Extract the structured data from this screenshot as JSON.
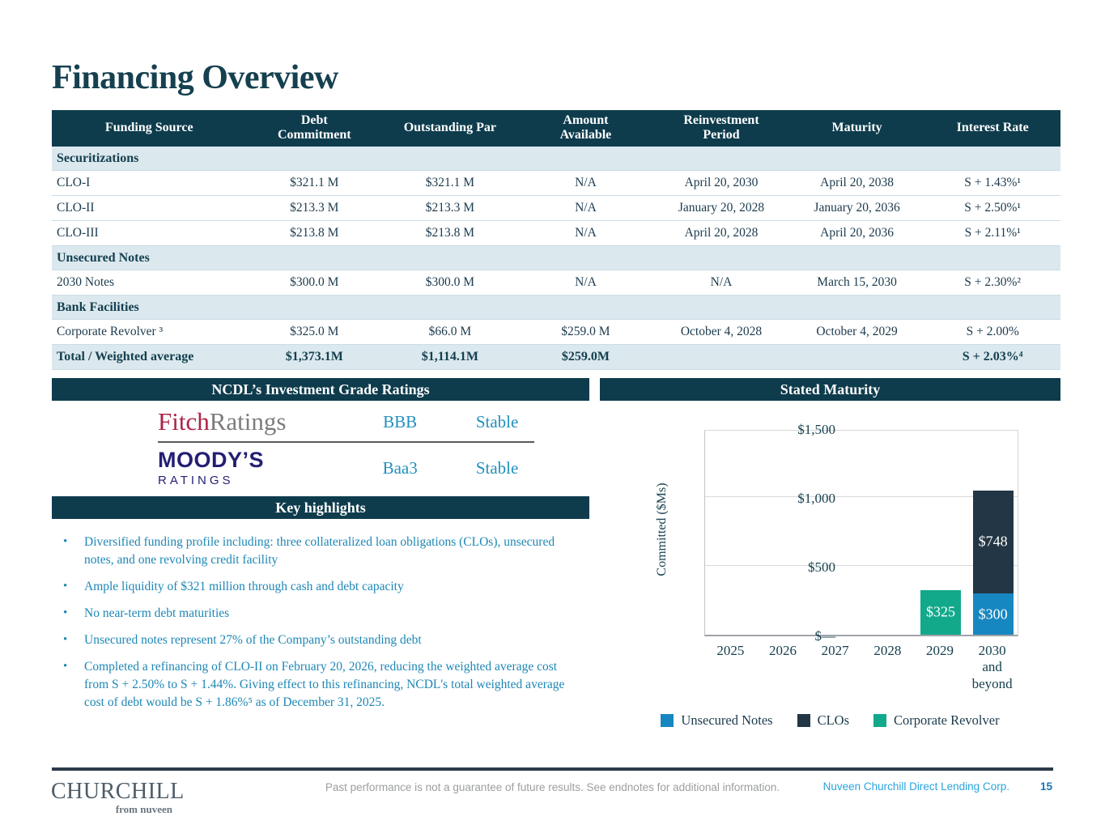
{
  "slide": {
    "title": "Financing Overview",
    "footer": {
      "logo_primary": "CHURCHILL",
      "logo_secondary": "from nuveen",
      "disclaimer": "Past performance is not a guarantee of future results. See endnotes for additional information.",
      "company": "Nuveen Churchill Direct Lending Corp.",
      "page_number": "15"
    }
  },
  "financing_table": {
    "headers": [
      "Funding Source",
      "Debt\nCommitment",
      "Outstanding Par",
      "Amount\nAvailable",
      "Reinvestment\nPeriod",
      "Maturity",
      "Interest Rate"
    ],
    "rows": [
      {
        "type": "section",
        "label": "Securitizations"
      },
      {
        "type": "data",
        "cells": [
          "CLO-I",
          "$321.1 M",
          "$321.1 M",
          "N/A",
          "April 20, 2030",
          "April 20, 2038",
          "S + 1.43%¹"
        ]
      },
      {
        "type": "data",
        "cells": [
          "CLO-II",
          "$213.3 M",
          "$213.3 M",
          "N/A",
          "January 20, 2028",
          "January 20, 2036",
          "S + 2.50%¹"
        ]
      },
      {
        "type": "data",
        "cells": [
          "CLO-III",
          "$213.8 M",
          "$213.8 M",
          "N/A",
          "April 20, 2028",
          "April 20, 2036",
          "S + 2.11%¹"
        ]
      },
      {
        "type": "section",
        "label": "Unsecured Notes"
      },
      {
        "type": "data",
        "cells": [
          "2030 Notes",
          "$300.0 M",
          "$300.0 M",
          "N/A",
          "N/A",
          "March 15, 2030",
          "S + 2.30%²"
        ]
      },
      {
        "type": "section",
        "label": "Bank Facilities"
      },
      {
        "type": "data",
        "cells": [
          "Corporate Revolver ³",
          "$325.0 M",
          "$66.0 M",
          "$259.0 M",
          "October 4, 2028",
          "October 4, 2029",
          "S + 2.00%"
        ]
      },
      {
        "type": "total",
        "cells": [
          "Total / Weighted average",
          "$1,373.1M",
          "$1,114.1M",
          "$259.0M",
          "",
          "",
          "S + 2.03%⁴"
        ]
      }
    ]
  },
  "ratings_panel": {
    "title": "NCDL’s Investment Grade Ratings",
    "agencies": [
      {
        "logo_line1": "Fitch",
        "logo_line2": "Ratings",
        "rating": "BBB",
        "outlook": "Stable"
      },
      {
        "logo_line1": "MOODY’S",
        "logo_line2": "RATINGS",
        "rating": "Baa3",
        "outlook": "Stable"
      }
    ]
  },
  "highlights_panel": {
    "title": "Key highlights",
    "bullets": [
      "Diversified funding profile including: three collateralized loan obligations (CLOs), unsecured notes, and one revolving credit facility",
      "Ample liquidity of $321 million through cash and debt capacity",
      "No near-term debt maturities",
      "Unsecured notes represent 27% of the Company’s outstanding debt",
      "Completed a refinancing of CLO-II on February 20, 2026, reducing the weighted average cost from S + 2.50% to S + 1.44%. Giving effect to this refinancing, NCDL's total weighted average cost of debt would be S + 1.86%⁵ as of December 31, 2025."
    ]
  },
  "maturity_panel": {
    "title": "Stated Maturity"
  },
  "chart_data": {
    "type": "bar",
    "subtype": "stacked",
    "title": "Stated Maturity",
    "ylabel": "Committed ($Ms)",
    "ylim": [
      0,
      1500
    ],
    "grid": true,
    "legend_position": "bottom",
    "yticks": [
      {
        "value": 0,
        "label": "$—"
      },
      {
        "value": 500,
        "label": "$500"
      },
      {
        "value": 1000,
        "label": "$1,000"
      },
      {
        "value": 1500,
        "label": "$1,500"
      }
    ],
    "categories": [
      "2025",
      "2026",
      "2027",
      "2028",
      "2029",
      "2030\nand\nbeyond"
    ],
    "series": [
      {
        "name": "Unsecured Notes",
        "color": "#1787c1",
        "values": [
          0,
          0,
          0,
          0,
          0,
          300
        ],
        "labels": [
          "",
          "",
          "",
          "",
          "",
          "$300"
        ]
      },
      {
        "name": "CLOs",
        "color": "#233645",
        "values": [
          0,
          0,
          0,
          0,
          0,
          748
        ],
        "labels": [
          "",
          "",
          "",
          "",
          "",
          "$748"
        ]
      },
      {
        "name": "Corporate Revolver",
        "color": "#12a98b",
        "values": [
          0,
          0,
          0,
          0,
          325,
          0
        ],
        "labels": [
          "",
          "",
          "",
          "",
          "$325",
          ""
        ]
      }
    ]
  },
  "colors": {
    "header_bar": "#0e3c4d",
    "section_row_bg": "#dbe8ee",
    "highlight_blue": "#1d87b5",
    "rating_blue": "#2090be",
    "fitch_red": "#ab2345",
    "fitch_gray": "#7c7c7e",
    "moodys_navy": "#241f73",
    "bar_blue": "#1787c1",
    "bar_navy": "#233645",
    "bar_green": "#12a98b",
    "footer_company_blue": "#29a5dc",
    "footer_page_blue": "#1b74b4"
  }
}
